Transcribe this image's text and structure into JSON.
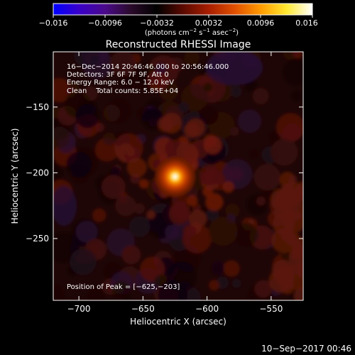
{
  "colorbar": {
    "ticks": [
      "−0.016",
      "−0.0096",
      "−0.0032",
      "0.0032",
      "0.0096",
      "0.016"
    ],
    "unit_main": "(photons cm",
    "unit_sup1": "−2",
    "unit_mid": " s",
    "unit_sup2": "−1",
    "unit_mid2": " asec",
    "unit_sup3": "−2",
    "unit_end": ")"
  },
  "annotations": {
    "time_range": "16−Dec−2014 20:46:46.000 to 20:56:46.000",
    "detectors": "Detectors: 3F 6F 7F 9F, Att 0",
    "energy_range": "Energy Range: 6.0 − 12.0 keV",
    "clean_counts": "Clean    Total counts: 5.85E+04",
    "peak_position": "Position of Peak = [−625,−203]"
  },
  "footer": {
    "timestamp": "10−Sep−2017 00:46"
  },
  "colors": {
    "background": "#000000",
    "foreground": "#ffffff",
    "colormap": [
      "#0000ff",
      "#3a00c8",
      "#4a0a8a",
      "#2a0a2a",
      "#000000",
      "#5a0a00",
      "#a81e00",
      "#e05000",
      "#ff9a00",
      "#ffe830",
      "#ffffff"
    ]
  },
  "chart_data": {
    "type": "heatmap",
    "title": "Reconstructed RHESSI Image",
    "xlabel": "Heliocentric X (arcsec)",
    "ylabel": "Heliocentric Y (arcsec)",
    "xlim": [
      -720,
      -525
    ],
    "ylim": [
      -297,
      -108
    ],
    "xticks": [
      -700,
      -650,
      -600,
      -550
    ],
    "yticks": [
      -150,
      -200,
      -250
    ],
    "xtick_labels": [
      "−700",
      "−650",
      "−600",
      "−550"
    ],
    "ytick_labels": [
      "−150",
      "−200",
      "−250"
    ],
    "colorbar_range": [
      -0.016,
      0.016
    ],
    "peak": {
      "x": -625,
      "y": -203
    },
    "total_counts": 58500,
    "energy_keV": [
      6.0,
      12.0
    ],
    "detectors": [
      "3F",
      "6F",
      "7F",
      "9F"
    ],
    "attenuator": 0
  }
}
